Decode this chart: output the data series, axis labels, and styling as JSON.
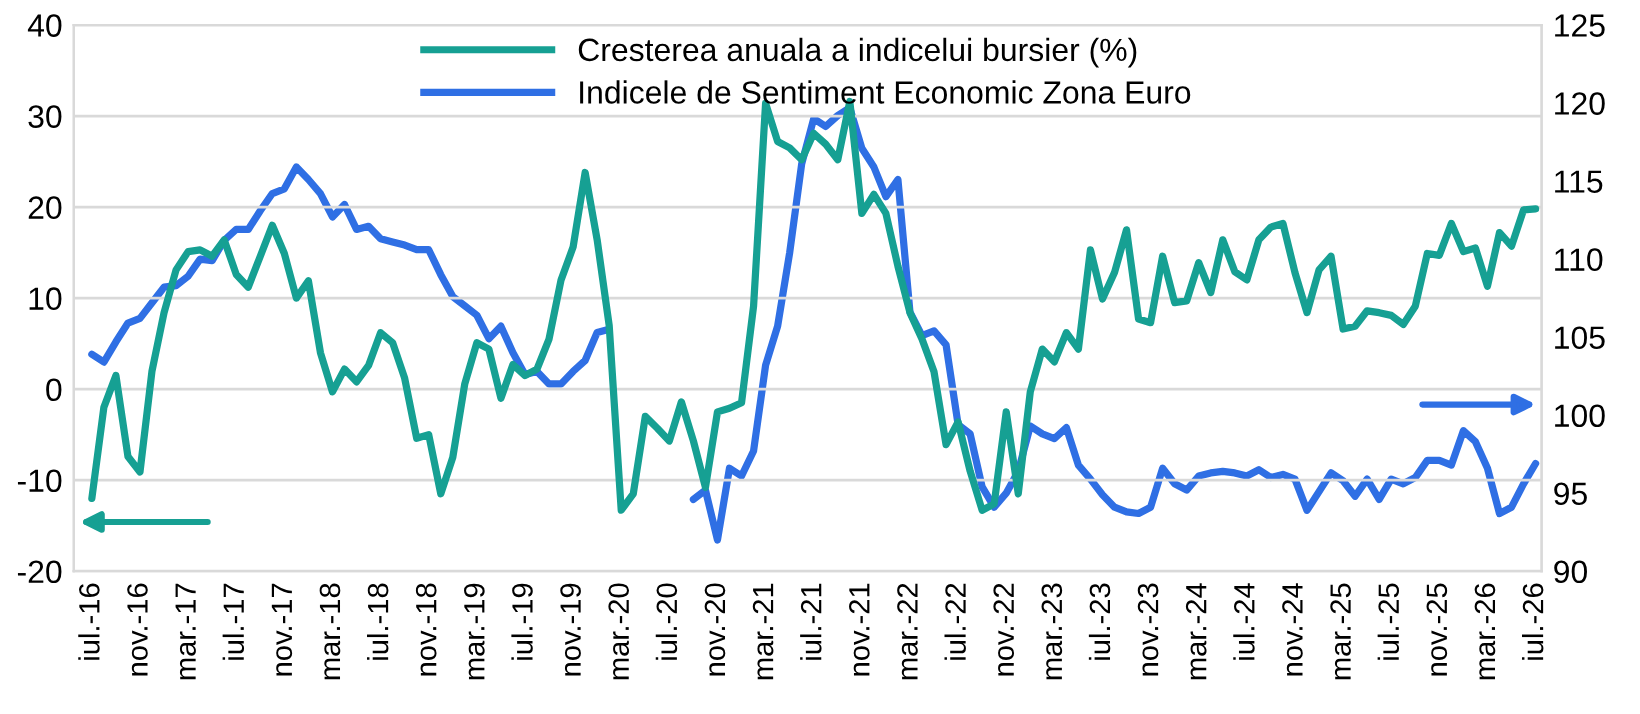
{
  "chart_data": {
    "type": "line",
    "categories": [
      "iul.-16",
      null,
      null,
      null,
      "nov.-16",
      null,
      null,
      null,
      "mar.-17",
      null,
      null,
      null,
      "iul.-17",
      null,
      null,
      null,
      "nov.-17",
      null,
      null,
      null,
      "mar.-18",
      null,
      null,
      null,
      "iul.-18",
      null,
      null,
      null,
      "nov.-18",
      null,
      null,
      null,
      "mar.-19",
      null,
      null,
      null,
      "iul.-19",
      null,
      null,
      null,
      "nov.-19",
      null,
      null,
      null,
      "mar.-20",
      null,
      null,
      null,
      "iul.-20",
      null,
      null,
      null,
      "nov.-20",
      null,
      null,
      null,
      "mar.-21",
      null,
      null,
      null,
      "iul.-21",
      null,
      null,
      null,
      "nov.-21",
      null,
      null,
      null,
      "mar.-22",
      null,
      null,
      null,
      "iul.-22",
      null,
      null,
      null,
      "nov.-22",
      null,
      null,
      null,
      "mar.-23",
      null,
      null,
      null,
      "iul.-23",
      null,
      null,
      null,
      "nov.-23",
      null,
      null,
      null,
      "mar.-24",
      null,
      null,
      null,
      "iul.-24",
      null,
      null,
      null,
      "nov.-24",
      null,
      null,
      null,
      "mar.-25",
      null,
      null,
      null,
      "iul.-25",
      null,
      null,
      null,
      "nov.-25",
      null,
      null,
      null,
      "mar.-26",
      null,
      null,
      null,
      "iul.-26"
    ],
    "series": [
      {
        "name": "Cresterea anuala a indicelui bursier (%)",
        "color": "#16a093",
        "values": [
          -12,
          -2,
          1.5,
          -7.4,
          -9.1,
          2,
          8.4,
          13.1,
          15.1,
          15.3,
          14.6,
          16.4,
          12.6,
          11.2,
          14.6,
          18,
          14.9,
          10,
          11.9,
          4,
          -0.3,
          2.2,
          0.8,
          2.6,
          6.2,
          5.1,
          1.2,
          -5.4,
          -5,
          -11.5,
          -7.5,
          0.6,
          5.1,
          4.4,
          -1,
          2.7,
          1.5,
          2.2,
          5.5,
          12,
          15.6,
          23.8,
          16.4,
          7,
          -13.3,
          -11.5,
          -3,
          -4.3,
          -5.7,
          -1.4,
          -5.7,
          -10.8,
          -2.5,
          -2.1,
          -1.5,
          9.1,
          31.4,
          27.2,
          26.5,
          25.2,
          28.1,
          26.9,
          25.2,
          31.6,
          19.3,
          21.4,
          19.3,
          13.5,
          8.4,
          5.5,
          1.9,
          -6.1,
          -3.6,
          -9,
          -13.3,
          -12.6,
          -2.5,
          -11.5,
          -0.3,
          4.4,
          3,
          6.2,
          4.4,
          15.3,
          9.9,
          12.8,
          17.5,
          7.7,
          7.3,
          14.6,
          9.5,
          9.7,
          13.9,
          10.6,
          16.4,
          12.9,
          12,
          16.4,
          17.8,
          18.2,
          12.8,
          8.4,
          13.1,
          14.6,
          6.6,
          6.9,
          8.6,
          8.4,
          8.1,
          7.1,
          9.1,
          14.9,
          14.7,
          18.2,
          15.1,
          15.5,
          11.3,
          17.2,
          15.7,
          19.7,
          19.8
        ]
      },
      {
        "name": "Indicele de Sentiment Economic Zona Euro",
        "color": "#2f6fe4",
        "axis": "y2",
        "values": [
          103.9,
          103.4,
          104.7,
          105.9,
          106.2,
          107.2,
          108.2,
          108.3,
          108.9,
          110,
          109.9,
          111.2,
          111.9,
          111.9,
          113.1,
          114.2,
          114.5,
          115.9,
          115.1,
          114.2,
          112.7,
          113.5,
          111.9,
          112.1,
          111.3,
          111.1,
          110.9,
          110.6,
          110.6,
          109,
          107.6,
          107,
          106.4,
          104.9,
          105.7,
          104,
          102.6,
          102.8,
          102,
          102,
          102.8,
          103.5,
          105.3,
          105.5,
          null,
          null,
          null,
          null,
          null,
          null,
          94.6,
          95.2,
          92,
          96.6,
          96.1,
          97.7,
          103.2,
          105.7,
          110.4,
          116.1,
          119,
          118.5,
          119.2,
          119.7,
          117.1,
          115.9,
          114,
          115.1,
          106.6,
          105.1,
          105.4,
          104.5,
          99.4,
          98.8,
          95.4,
          94.1,
          95,
          96.4,
          99.3,
          98.8,
          98.5,
          99.2,
          96.8,
          95.9,
          94.9,
          94.1,
          93.8,
          93.7,
          94.1,
          96.6,
          95.6,
          95.2,
          96.1,
          96.3,
          96.4,
          96.3,
          96.1,
          96.5,
          96,
          96.2,
          95.9,
          93.9,
          95.1,
          96.3,
          95.8,
          94.8,
          95.9,
          94.6,
          95.9,
          95.6,
          96,
          97.1,
          97.1,
          96.8,
          99,
          98.3,
          96.6,
          93.7,
          94.1,
          95.6,
          96.9
        ]
      }
    ],
    "ylim": [
      -20,
      40
    ],
    "yticks": [
      -20,
      -10,
      0,
      10,
      20,
      30,
      40
    ],
    "y2lim": [
      90,
      125
    ],
    "y2ticks": [
      90,
      95,
      100,
      105,
      110,
      115,
      120,
      125
    ],
    "grid": "y",
    "legend": "top",
    "marker": "none",
    "line_style": "solid"
  }
}
